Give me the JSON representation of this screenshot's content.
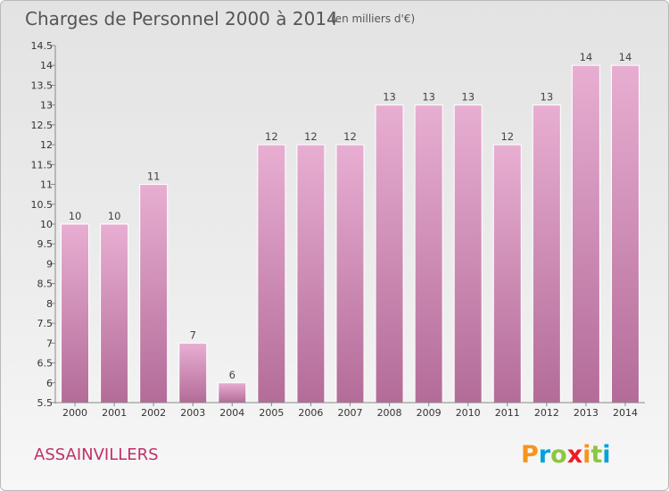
{
  "header": {
    "title": "Charges de Personnel 2000 à 2014",
    "subtitle": "(en milliers d'€)"
  },
  "footer": {
    "commune": "ASSAINVILLERS",
    "brand": "Proxiti"
  },
  "colors": {
    "bar_top": "#e8aed2",
    "bar_bottom": "#b36c98",
    "commune_text": "#c0306a",
    "logo": [
      "#f7941d",
      "#00a3da",
      "#8dc63f",
      "#ed1c24",
      "#f7941d",
      "#8dc63f",
      "#00a3da"
    ]
  },
  "chart_data": {
    "type": "bar",
    "title": "Charges de Personnel 2000 à 2014",
    "subtitle": "(en milliers d'€)",
    "xlabel": "",
    "ylabel": "",
    "categories": [
      "2000",
      "2001",
      "2002",
      "2003",
      "2004",
      "2005",
      "2006",
      "2007",
      "2008",
      "2009",
      "2010",
      "2011",
      "2012",
      "2013",
      "2014"
    ],
    "values": [
      10,
      10,
      11,
      7,
      6,
      12,
      12,
      12,
      13,
      13,
      13,
      12,
      13,
      14,
      14
    ],
    "ylim": [
      5.5,
      14.5
    ],
    "yticks": [
      "5.5",
      "6",
      "6.5",
      "7",
      "7.5",
      "8",
      "8.5",
      "9",
      "9.5",
      "10",
      "10.5",
      "11",
      "11.5",
      "12",
      "12.5",
      "13",
      "13.5",
      "14",
      "14.5"
    ],
    "grid": false,
    "legend": "none"
  }
}
